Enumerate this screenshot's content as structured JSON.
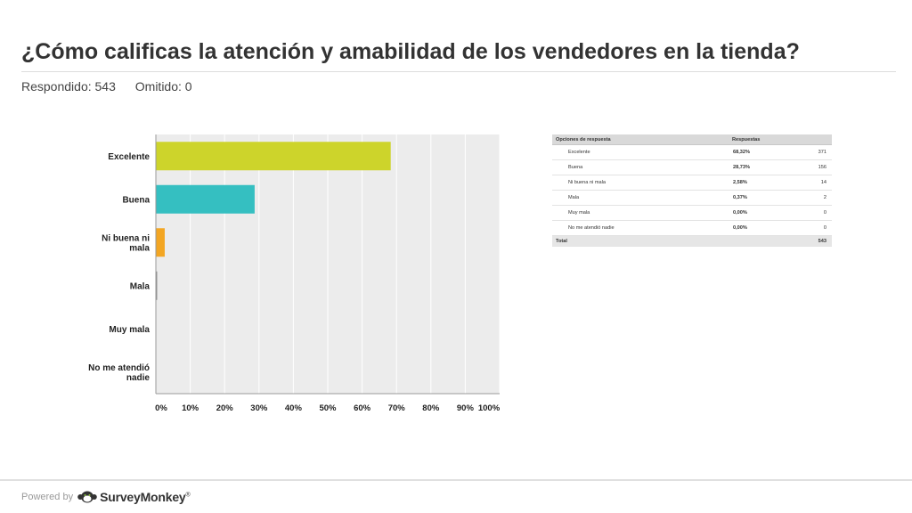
{
  "header": {
    "title": "¿Cómo calificas la atención y amabilidad de los vendedores en la tienda?",
    "answered": "Respondido: 543",
    "skipped": "Omitido: 0"
  },
  "chart_data": {
    "type": "bar",
    "orientation": "horizontal",
    "categories": [
      "Excelente",
      "Buena",
      "Ni buena ni mala",
      "Mala",
      "Muy mala",
      "No me atendió nadie"
    ],
    "category_lines": [
      [
        "Excelente"
      ],
      [
        "Buena"
      ],
      [
        "Ni buena ni",
        "mala"
      ],
      [
        "Mala"
      ],
      [
        "Muy mala"
      ],
      [
        "No me atendió",
        "nadie"
      ]
    ],
    "values": [
      68.32,
      28.73,
      2.58,
      0.37,
      0.0,
      0.0
    ],
    "bar_colors": [
      "#cdd42b",
      "#35bfc1",
      "#f3a623",
      "#8a8a8a",
      "#cccccc",
      "#cccccc"
    ],
    "x_ticks": [
      "0%",
      "10%",
      "20%",
      "30%",
      "40%",
      "50%",
      "60%",
      "70%",
      "80%",
      "90%",
      "100%"
    ],
    "xlim": [
      0,
      100
    ],
    "grid": true,
    "plot_background": "#ececec",
    "legend": "none",
    "title": "",
    "xlabel": "",
    "ylabel": ""
  },
  "table": {
    "headers": [
      "Opciones de respuesta",
      "Respuestas"
    ],
    "rows": [
      {
        "option": "Excelente",
        "percent": "68,32%",
        "count": "371"
      },
      {
        "option": "Buena",
        "percent": "28,73%",
        "count": "156"
      },
      {
        "option": "Ni buena ni mala",
        "percent": "2,58%",
        "count": "14"
      },
      {
        "option": "Mala",
        "percent": "0,37%",
        "count": "2"
      },
      {
        "option": "Muy mala",
        "percent": "0,00%",
        "count": "0"
      },
      {
        "option": "No me atendió nadie",
        "percent": "0,00%",
        "count": "0"
      }
    ],
    "total_label": "Total",
    "total_count": "543"
  },
  "footer": {
    "powered_by": "Powered by",
    "brand": "SurveyMonkey",
    "brand_suffix": "®",
    "brand_color": "#8dc63f",
    "logo_icon": "surveymonkey-logo-icon"
  }
}
